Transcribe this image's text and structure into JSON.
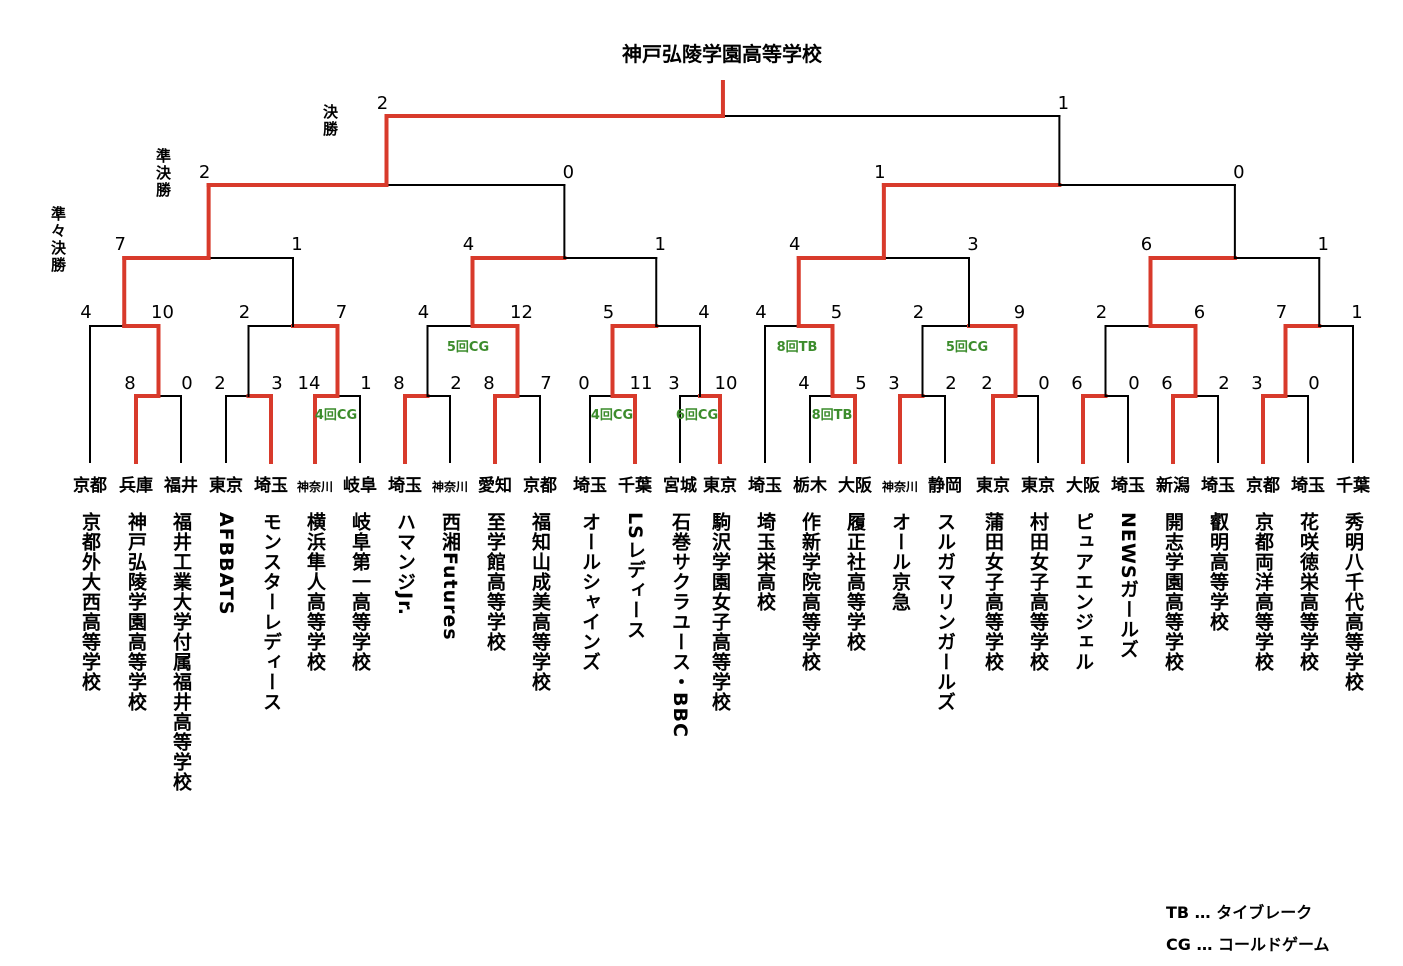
{
  "champion": "神戸弘陵学園高等学校",
  "round_labels": {
    "final": "決勝",
    "semifinal": "準決勝",
    "quarterfinal": "準々決勝"
  },
  "teams": [
    {
      "pref": "京都",
      "name": "京都外大西高等学校"
    },
    {
      "pref": "兵庫",
      "name": "神戸弘陵学園高等学校"
    },
    {
      "pref": "福井",
      "name": "福井工業大学付属福井高等学校"
    },
    {
      "pref": "東京",
      "name": "AFBBATS"
    },
    {
      "pref": "埼玉",
      "name": "モンスターレディース"
    },
    {
      "pref": "神奈川",
      "name": "横浜隼人高等学校"
    },
    {
      "pref": "岐阜",
      "name": "岐阜第一高等学校"
    },
    {
      "pref": "埼玉",
      "name": "ハマンジJr."
    },
    {
      "pref": "神奈川",
      "name": "西湘Futures"
    },
    {
      "pref": "愛知",
      "name": "至学館高等学校"
    },
    {
      "pref": "京都",
      "name": "福知山成美高等学校"
    },
    {
      "pref": "埼玉",
      "name": "オールシャインズ"
    },
    {
      "pref": "千葉",
      "name": "LSレディース"
    },
    {
      "pref": "宮城",
      "name": "石巻サクラユース・BBC"
    },
    {
      "pref": "東京",
      "name": "駒沢学園女子高等学校"
    },
    {
      "pref": "埼玉",
      "name": "埼玉栄高校"
    },
    {
      "pref": "栃木",
      "name": "作新学院高等学校"
    },
    {
      "pref": "大阪",
      "name": "履正社高等学校"
    },
    {
      "pref": "神奈川",
      "name": "オール京急"
    },
    {
      "pref": "静岡",
      "name": "スルガマリンガールズ"
    },
    {
      "pref": "東京",
      "name": "蒲田女子高等学校"
    },
    {
      "pref": "東京",
      "name": "村田女子高等学校"
    },
    {
      "pref": "大阪",
      "name": "ピュアエンジェル"
    },
    {
      "pref": "埼玉",
      "name": "NEWSガールズ"
    },
    {
      "pref": "新潟",
      "name": "開志学園高等学校"
    },
    {
      "pref": "埼玉",
      "name": "叡明高等学校"
    },
    {
      "pref": "京都",
      "name": "京都両洋高等学校"
    },
    {
      "pref": "埼玉",
      "name": "花咲徳栄高等学校"
    },
    {
      "pref": "千葉",
      "name": "秀明八千代高等学校"
    }
  ],
  "scores": {
    "r1": [
      "8",
      "0",
      "2",
      "3",
      "14",
      "1",
      "8",
      "2",
      "8",
      "7",
      "0",
      "11",
      "3",
      "10",
      "4",
      "5",
      "3",
      "2",
      "2",
      "0",
      "6",
      "0",
      "6",
      "2",
      "3",
      "0"
    ],
    "r2": [
      "4",
      "10",
      "2",
      "7",
      "4",
      "12",
      "5",
      "4",
      "4",
      "5",
      "2",
      "9",
      "2",
      "6",
      "7",
      "1"
    ],
    "qf": [
      "7",
      "1",
      "4",
      "1",
      "4",
      "3",
      "6",
      "1"
    ],
    "sf": [
      "2",
      "0",
      "1",
      "0"
    ],
    "final": [
      "2",
      "1"
    ]
  },
  "notes": [
    "5回CG",
    "4回CG",
    "4回CG",
    "6回CG",
    "8回TB",
    "8回TB",
    "5回CG"
  ],
  "legend": {
    "tb": "TB … タイブレーク",
    "cg": "CG … コールドゲーム"
  },
  "colors": {
    "winner": "#d83a2b",
    "line": "#000000",
    "note": "#3c8c2c"
  }
}
